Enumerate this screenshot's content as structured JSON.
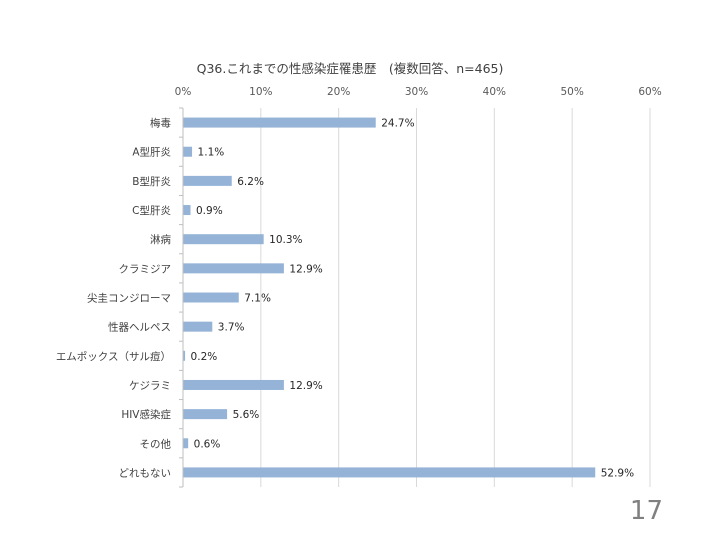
{
  "chart_data": {
    "type": "bar",
    "orientation": "horizontal",
    "title": "Q36.これまでの性感染症罹患歴　(複数回答、n=465)",
    "categories": [
      "梅毒",
      "A型肝炎",
      "B型肝炎",
      "C型肝炎",
      "淋病",
      "クラミジア",
      "尖圭コンジローマ",
      "性器ヘルペス",
      "エムポックス（サル痘）",
      "ケジラミ",
      "HIV感染症",
      "その他",
      "どれもない"
    ],
    "values": [
      24.7,
      1.1,
      6.2,
      0.9,
      10.3,
      12.9,
      7.1,
      3.7,
      0.2,
      12.9,
      5.6,
      0.6,
      52.9
    ],
    "value_labels": [
      "24.7%",
      "1.1%",
      "6.2%",
      "0.9%",
      "10.3%",
      "12.9%",
      "7.1%",
      "3.7%",
      "0.2%",
      "12.9%",
      "5.6%",
      "0.6%",
      "52.9%"
    ],
    "x_ticks": [
      "0%",
      "10%",
      "20%",
      "30%",
      "40%",
      "50%",
      "60%"
    ],
    "xlim": [
      0,
      60
    ],
    "xlabel": "",
    "ylabel": "",
    "grid": true,
    "bar_color": "#95b3d7",
    "gridline_color": "#d9d9d9"
  },
  "page": {
    "number": "17"
  }
}
